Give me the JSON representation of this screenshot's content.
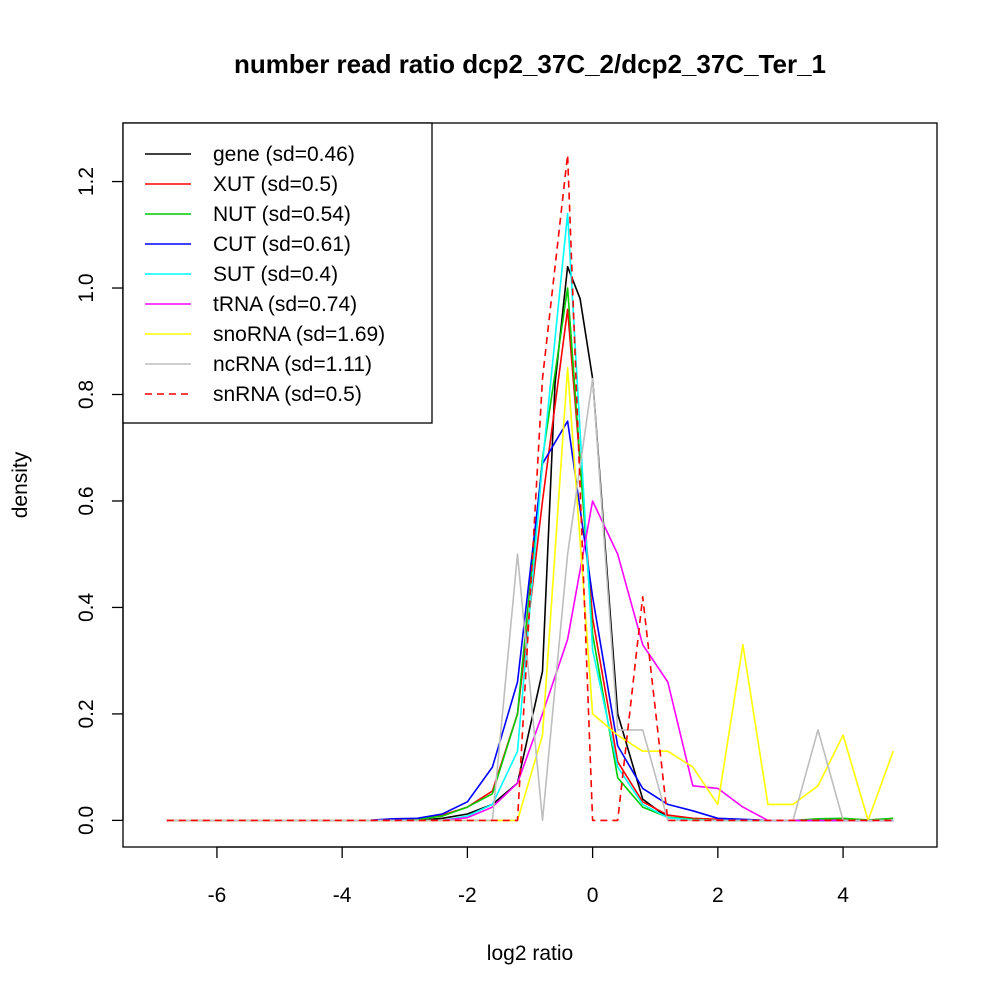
{
  "chart_data": {
    "type": "line",
    "title": "number read ratio dcp2_37C_2/dcp2_37C_Ter_1",
    "xlabel": "log2 ratio",
    "ylabel": "density",
    "xlim": [
      -7.5,
      5.5
    ],
    "ylim": [
      -0.05,
      1.31
    ],
    "x_ticks": [
      -6,
      -4,
      -2,
      0,
      2,
      4
    ],
    "y_ticks": [
      0.0,
      0.2,
      0.4,
      0.6,
      0.8,
      1.0,
      1.2
    ],
    "x_tick_labels": [
      "-6",
      "-4",
      "-2",
      "0",
      "2",
      "4"
    ],
    "y_tick_labels": [
      "0.0",
      "0.2",
      "0.4",
      "0.6",
      "0.8",
      "1.0",
      "1.2"
    ],
    "grid": false,
    "legend_position": "top-left",
    "series": [
      {
        "name": "gene (sd=0.46)",
        "color": "#000000",
        "dash": "solid",
        "x": [
          -6.8,
          -2.8,
          -2.4,
          -2.0,
          -1.6,
          -1.2,
          -0.8,
          -0.6,
          -0.4,
          -0.2,
          0.0,
          0.4,
          0.8,
          1.2,
          1.6,
          2.0,
          2.4,
          2.8,
          3.2,
          3.6,
          4.0,
          4.4,
          4.8
        ],
        "y": [
          0,
          0,
          0.004,
          0.012,
          0.03,
          0.07,
          0.28,
          0.82,
          1.04,
          0.98,
          0.83,
          0.2,
          0.04,
          0.005,
          0.002,
          0.001,
          0,
          0,
          0,
          0,
          0,
          0,
          0
        ]
      },
      {
        "name": "XUT (sd=0.5)",
        "color": "#ff0000",
        "dash": "solid",
        "x": [
          -6.8,
          -3.2,
          -2.8,
          -2.4,
          -2.0,
          -1.6,
          -1.2,
          -0.8,
          -0.4,
          0.0,
          0.4,
          0.8,
          1.2,
          1.6,
          2.0,
          2.4,
          2.8,
          3.2,
          3.6,
          4.0,
          4.4,
          4.8
        ],
        "y": [
          0,
          0,
          0.003,
          0.01,
          0.025,
          0.055,
          0.2,
          0.6,
          0.96,
          0.38,
          0.11,
          0.035,
          0.01,
          0.004,
          0.002,
          0.001,
          0,
          0,
          0.001,
          0.002,
          0.001,
          0
        ]
      },
      {
        "name": "NUT (sd=0.54)",
        "color": "#00cc00",
        "dash": "solid",
        "x": [
          -6.8,
          -3.2,
          -2.8,
          -2.4,
          -2.0,
          -1.6,
          -1.2,
          -0.8,
          -0.4,
          0.0,
          0.4,
          0.8,
          1.2,
          1.6,
          2.0,
          2.4,
          2.8,
          3.2,
          3.6,
          4.0,
          4.4,
          4.8
        ],
        "y": [
          0,
          0,
          0.002,
          0.008,
          0.025,
          0.05,
          0.2,
          0.68,
          1.0,
          0.35,
          0.08,
          0.025,
          0.006,
          0.002,
          0,
          0,
          0,
          0,
          0.003,
          0.004,
          0.001,
          0.004
        ]
      },
      {
        "name": "CUT (sd=0.61)",
        "color": "#0000ff",
        "dash": "solid",
        "x": [
          -6.8,
          -3.6,
          -3.2,
          -2.8,
          -2.4,
          -2.0,
          -1.6,
          -1.2,
          -0.8,
          -0.4,
          0.0,
          0.4,
          0.8,
          1.2,
          1.6,
          2.0,
          2.4,
          2.8,
          3.2,
          3.6,
          4.0,
          4.4,
          4.8
        ],
        "y": [
          0,
          0,
          0.003,
          0.004,
          0.012,
          0.035,
          0.1,
          0.26,
          0.67,
          0.75,
          0.42,
          0.14,
          0.06,
          0.03,
          0.018,
          0.004,
          0.002,
          0,
          0,
          0,
          0,
          0,
          0
        ]
      },
      {
        "name": "SUT (sd=0.4)",
        "color": "#00ffff",
        "dash": "solid",
        "x": [
          -6.8,
          -2.4,
          -2.0,
          -1.6,
          -1.2,
          -0.8,
          -0.4,
          0.0,
          0.4,
          0.8,
          1.2,
          1.6,
          2.0,
          2.4,
          2.8,
          3.2,
          3.6,
          4.0,
          4.4,
          4.8
        ],
        "y": [
          0,
          0,
          0.008,
          0.03,
          0.13,
          0.67,
          1.14,
          0.32,
          0.1,
          0.03,
          0.005,
          0.001,
          0,
          0,
          0,
          0,
          0,
          0,
          0,
          0
        ]
      },
      {
        "name": "tRNA (sd=0.74)",
        "color": "#ff00ff",
        "dash": "solid",
        "x": [
          -6.8,
          -2.4,
          -2.0,
          -1.6,
          -1.2,
          -0.8,
          -0.4,
          0.0,
          0.4,
          0.8,
          1.2,
          1.6,
          2.0,
          2.4,
          2.8,
          3.2,
          3.6,
          4.0,
          4.4,
          4.8
        ],
        "y": [
          0,
          0,
          0.005,
          0.025,
          0.07,
          0.2,
          0.34,
          0.6,
          0.5,
          0.33,
          0.26,
          0.065,
          0.06,
          0.025,
          0,
          0,
          0,
          0,
          0,
          0
        ]
      },
      {
        "name": "snoRNA (sd=1.69)",
        "color": "#ffff00",
        "dash": "solid",
        "x": [
          -6.8,
          -1.2,
          -0.8,
          -0.4,
          0.0,
          0.4,
          0.8,
          1.2,
          1.6,
          2.0,
          2.4,
          2.8,
          3.2,
          3.6,
          4.0,
          4.4,
          4.8
        ],
        "y": [
          0,
          0,
          0.16,
          0.85,
          0.2,
          0.16,
          0.13,
          0.13,
          0.1,
          0.03,
          0.33,
          0.03,
          0.03,
          0.065,
          0.16,
          0,
          0.13
        ]
      },
      {
        "name": "ncRNA (sd=1.11)",
        "color": "#bebebe",
        "dash": "solid",
        "x": [
          -6.8,
          -1.6,
          -1.2,
          -0.8,
          -0.4,
          0.0,
          0.4,
          0.8,
          1.2,
          1.6,
          2.0,
          2.4,
          2.8,
          3.2,
          3.6,
          4.0,
          4.4,
          4.8
        ],
        "y": [
          0,
          0,
          0.5,
          0,
          0.5,
          0.83,
          0.17,
          0.17,
          0,
          0,
          0,
          0,
          0,
          0,
          0.17,
          0,
          0,
          0
        ]
      },
      {
        "name": "snRNA (sd=0.5)",
        "color": "#ff0000",
        "dash": "dashed",
        "x": [
          -6.8,
          -1.2,
          -0.8,
          -0.4,
          0.0,
          0.4,
          0.8,
          1.2,
          1.6,
          2.0,
          2.4,
          2.8,
          3.2,
          3.6,
          4.0,
          4.4,
          4.8
        ],
        "y": [
          0,
          0,
          0.83,
          1.25,
          0,
          0,
          0.42,
          0,
          0,
          0,
          0,
          0,
          0,
          0,
          0,
          0,
          0
        ]
      }
    ]
  }
}
